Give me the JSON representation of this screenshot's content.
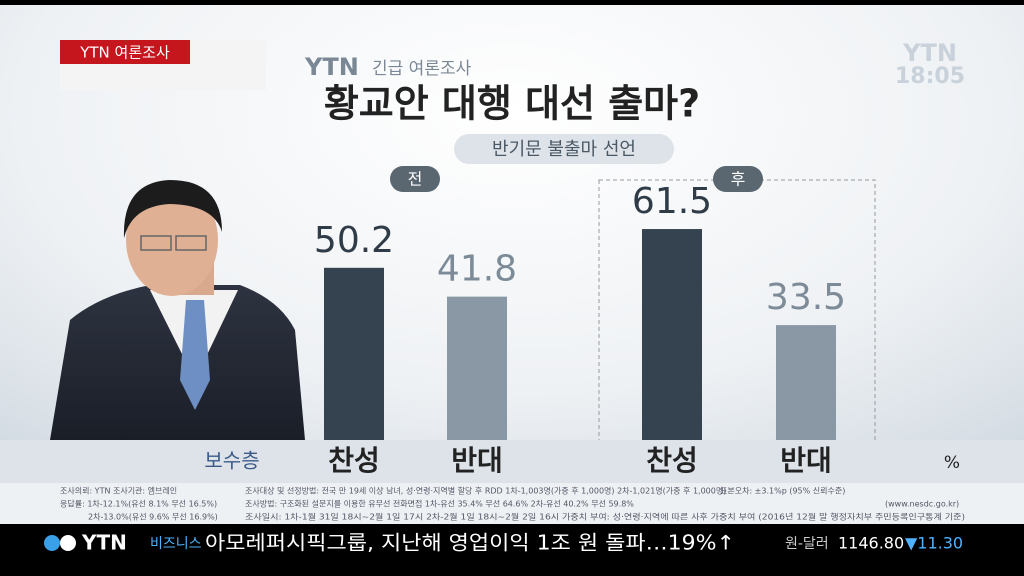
{
  "tag": "YTN 여론조사",
  "clock": {
    "brand": "YTN",
    "time": "18:05"
  },
  "header": {
    "brand": "YTN",
    "kicker": "긴급 여론조사"
  },
  "chart_data": {
    "type": "bar",
    "title": "황교안 대행 대선 출마?",
    "subtitle": "반기문 불출마 선언",
    "group_label": "보수층",
    "unit": "%",
    "categories": [
      "찬성",
      "반대"
    ],
    "colors": [
      "#34434f",
      "#8a98a6"
    ],
    "series": [
      {
        "name": "전",
        "values": [
          50.2,
          41.8
        ]
      },
      {
        "name": "후",
        "values": [
          61.5,
          33.5
        ]
      }
    ]
  },
  "footnotes": {
    "left": [
      "조사의뢰: YTN    조사기관: 엠브레인",
      "응답률: 1차-12.1%(유선 8.1% 무선 16.5%)",
      "2차-13.0%(유선 9.6% 무선 16.9%)"
    ],
    "right": [
      "조사대상 및 선정방법: 전국 만 19세 이상 남녀, 성·연령·지역별 할당 후 RDD   1차-1,003명(가중 후 1,000명)   2차-1,021명(가중 후 1,000명)",
      "조사방법: 구조화된 설문지를 이용한 유무선 전화면접   1차-유선 35.4% 무선 64.6%   2차-유선 40.2% 무선 59.8%",
      "조사일시: 1차-1월 31일 18시~2월 1일 17시   2차-2월 1일 18시~2월 2일 16시   가중치 부여: 성·연령·지역에 따른 사후 가중치 부여 (2016년 12월 말 행정자치부 주민등록인구통계 기준)"
    ],
    "error": "표본오차: ±3.1%p (95% 신뢰수준)",
    "site": "(www.nesdc.go.kr)"
  },
  "ticker": {
    "brand": "YTN",
    "section": "비즈니스",
    "headline": "아모레퍼시픽그룹, 지난해 영업이익 1조 원 돌파…19%↑",
    "rate_label": "원-달러",
    "rate": "1146.80",
    "change": "▼11.30"
  }
}
